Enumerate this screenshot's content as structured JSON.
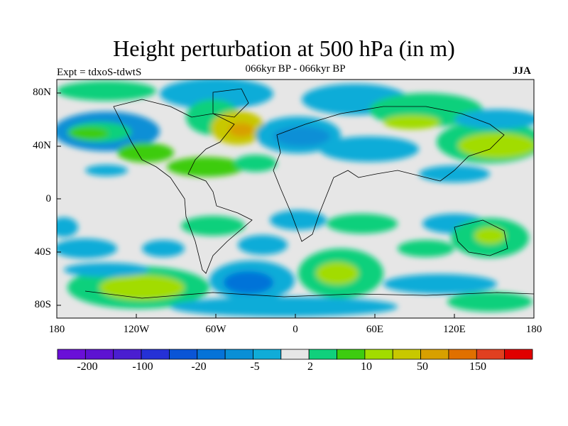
{
  "title": "Height perturbation at 500 hPa (in m)",
  "left_string": "Expt = tdxoS-tdwtS",
  "center_string": "066kyr BP - 066kyr BP",
  "right_string": "JJA",
  "axes": {
    "y_ticks": [
      "80N",
      "40N",
      "0",
      "40S",
      "80S"
    ],
    "x_ticks": [
      "180",
      "120W",
      "60W",
      "0",
      "60E",
      "120E",
      "180"
    ]
  },
  "colors": {
    "background_fill": "#e6e6e6",
    "coast": "#000000"
  },
  "colorbar": {
    "colors": [
      "#6a0fd8",
      "#5d12d2",
      "#4a1ed0",
      "#2531d6",
      "#0a55d6",
      "#0673d8",
      "#0a8fd6",
      "#10acd8",
      "#e6e6e6",
      "#10d07c",
      "#3dcc10",
      "#a2dc00",
      "#c8c800",
      "#d8a000",
      "#e07000",
      "#e04020",
      "#e00000"
    ],
    "labels": [
      "-200",
      "-100",
      "-20",
      "-5",
      "2",
      "10",
      "50",
      "150"
    ]
  }
}
